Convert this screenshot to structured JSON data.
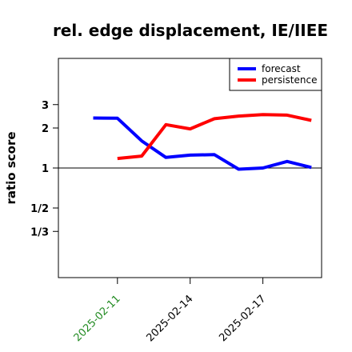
{
  "chart_data": {
    "type": "line",
    "title": "rel. edge displacement, IE/IIEE",
    "xlabel": "",
    "ylabel": "ratio score",
    "y_scale": "log",
    "y_ticks": [
      {
        "value": 0.3333,
        "label": "1/3"
      },
      {
        "value": 0.5,
        "label": "1/2"
      },
      {
        "value": 1,
        "label": "1"
      },
      {
        "value": 2,
        "label": "2"
      },
      {
        "value": 3,
        "label": "3"
      }
    ],
    "reference_line": 1,
    "x": [
      "2025-02-10",
      "2025-02-11",
      "2025-02-12",
      "2025-02-13",
      "2025-02-14",
      "2025-02-15",
      "2025-02-16",
      "2025-02-17",
      "2025-02-18",
      "2025-02-19"
    ],
    "x_ticks": [
      {
        "value": "2025-02-11",
        "label": "2025-02-11",
        "color": "#228B22"
      },
      {
        "value": "2025-02-14",
        "label": "2025-02-14",
        "color": "#000000"
      },
      {
        "value": "2025-02-17",
        "label": "2025-02-17",
        "color": "#000000"
      }
    ],
    "series": [
      {
        "name": "forecast",
        "color": "#0000ff",
        "values": [
          2.38,
          2.37,
          1.6,
          1.2,
          1.25,
          1.26,
          0.98,
          1.0,
          1.12,
          1.01
        ]
      },
      {
        "name": "persistence",
        "color": "#ff0000",
        "values": [
          null,
          1.18,
          1.23,
          2.12,
          1.97,
          2.35,
          2.46,
          2.52,
          2.5,
          2.28
        ]
      }
    ],
    "legend": {
      "position": "top-right",
      "entries": [
        "forecast",
        "persistence"
      ]
    },
    "grid": false
  }
}
